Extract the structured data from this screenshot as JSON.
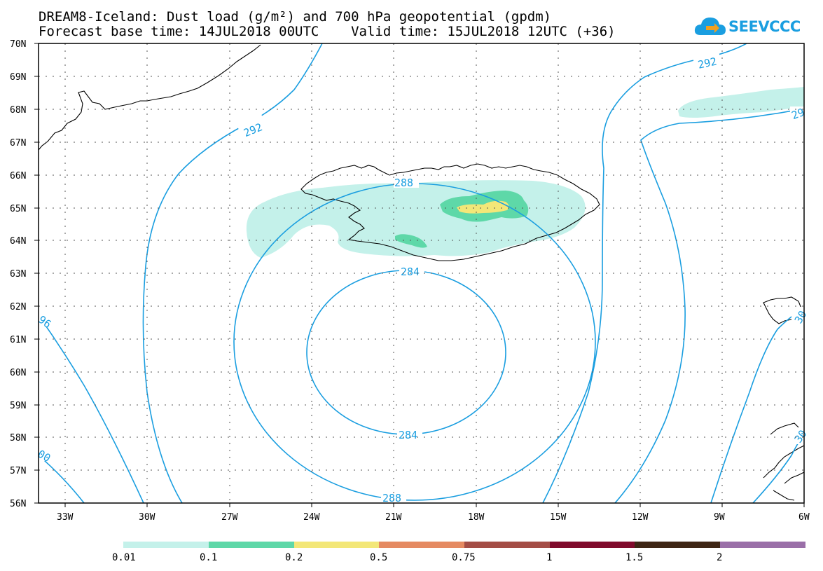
{
  "header": {
    "line1": "DREAM8-Iceland: Dust load (g/m²) and 700 hPa geopotential (gpdm)",
    "line2": "Forecast base time: 14JUL2018 00UTC    Valid time: 15JUL2018 12UTC (+36)"
  },
  "logo": {
    "text": "SEEVCCC",
    "icon": "cloud-icon",
    "color": "#1a9ee0"
  },
  "axes": {
    "lat_labels": [
      "70N",
      "69N",
      "68N",
      "67N",
      "66N",
      "65N",
      "64N",
      "63N",
      "62N",
      "61N",
      "60N",
      "59N",
      "58N",
      "57N",
      "56N"
    ],
    "lon_labels": [
      "33W",
      "30W",
      "27W",
      "24W",
      "21W",
      "18W",
      "15W",
      "12W",
      "9W",
      "6W"
    ]
  },
  "contours": {
    "color": "#1a9ee0",
    "labels": [
      {
        "text": "292"
      },
      {
        "text": "292"
      },
      {
        "text": "288"
      },
      {
        "text": "284"
      },
      {
        "text": "284"
      },
      {
        "text": "288"
      },
      {
        "text": "96"
      },
      {
        "text": "00"
      },
      {
        "text": "29"
      },
      {
        "text": "30"
      },
      {
        "text": "30"
      }
    ]
  },
  "legend": {
    "colors": [
      "#c4f1ea",
      "#5ed8a8",
      "#f3e778",
      "#e58a62",
      "#a44d46",
      "#800a2c",
      "#3e2615",
      "#9a6fa8"
    ],
    "labels": [
      "0.01",
      "0.1",
      "0.2",
      "0.5",
      "0.75",
      "1",
      "1.5",
      "2"
    ]
  }
}
